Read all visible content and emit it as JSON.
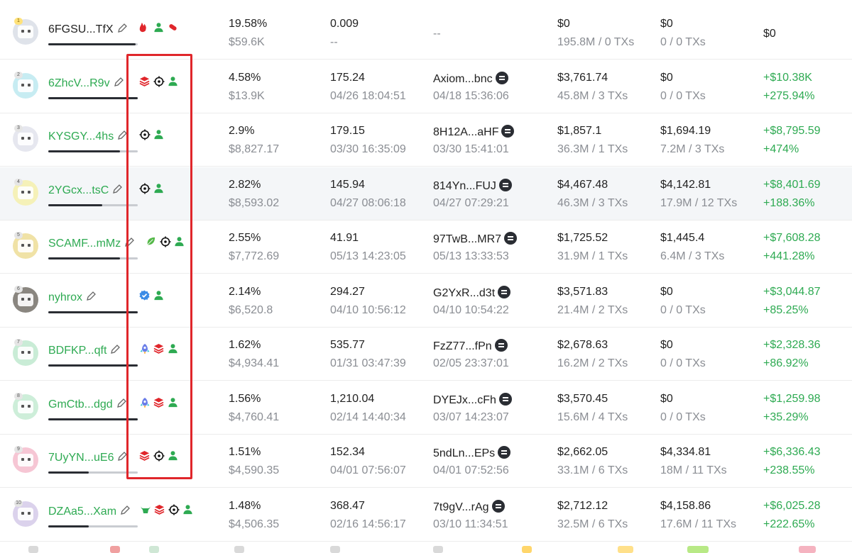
{
  "colors": {
    "accent_green": "#2eaa52",
    "highlight_box": "#e0262b"
  },
  "rows": [
    {
      "rank": "1",
      "name": "6FGSU...TfX",
      "name_style": "plain",
      "progress": 0.98,
      "badges": [
        "fire-user-icon",
        "user-icon",
        "pill-icon"
      ],
      "pct": "19.58%",
      "pct_val": "$59.6K",
      "bal": "0.009",
      "bal_time": "--",
      "source": "",
      "source_time": "--",
      "buy": "$0",
      "buy_sub": "195.8M / 0 TXs",
      "sell": "$0",
      "sell_sub": "0 / 0 TXs",
      "pnl": "$0",
      "pnl_pct": "",
      "pnl_style": "plain"
    },
    {
      "rank": "2",
      "name": "6ZhcV...R9v",
      "name_style": "green",
      "progress": 1.0,
      "badges": [
        "stack-icon",
        "target-icon",
        "user-icon"
      ],
      "pct": "4.58%",
      "pct_val": "$13.9K",
      "bal": "175.24",
      "bal_time": "04/26 18:04:51",
      "source": "Axiom...bnc",
      "source_time": "04/18 15:36:06",
      "buy": "$3,761.74",
      "buy_sub": "45.8M / 3 TXs",
      "sell": "$0",
      "sell_sub": "0 / 0 TXs",
      "pnl": "+$10.38K",
      "pnl_pct": "+275.94%",
      "pnl_style": "pos"
    },
    {
      "rank": "3",
      "name": "KYSGY...4hs",
      "name_style": "green",
      "progress": 0.8,
      "badges": [
        "target-icon",
        "user-icon"
      ],
      "pct": "2.9%",
      "pct_val": "$8,827.17",
      "bal": "179.15",
      "bal_time": "03/30 16:35:09",
      "source": "8H12A...aHF",
      "source_time": "03/30 15:41:01",
      "buy": "$1,857.1",
      "buy_sub": "36.3M / 1 TXs",
      "sell": "$1,694.19",
      "sell_sub": "7.2M / 3 TXs",
      "pnl": "+$8,795.59",
      "pnl_pct": "+474%",
      "pnl_style": "pos"
    },
    {
      "rank": "4",
      "name": "2YGcx...tsC",
      "name_style": "green",
      "progress": 0.6,
      "badges": [
        "target-icon",
        "user-icon"
      ],
      "pct": "2.82%",
      "pct_val": "$8,593.02",
      "bal": "145.94",
      "bal_time": "04/27 08:06:18",
      "source": "814Yn...FUJ",
      "source_time": "04/27 07:29:21",
      "buy": "$4,467.48",
      "buy_sub": "46.3M / 3 TXs",
      "sell": "$4,142.81",
      "sell_sub": "17.9M / 12 TXs",
      "pnl": "+$8,401.69",
      "pnl_pct": "+188.36%",
      "pnl_style": "pos"
    },
    {
      "rank": "5",
      "name": "SCAMF...mMz",
      "name_style": "green",
      "progress": 0.8,
      "badges": [
        "leaf-icon",
        "target-icon",
        "user-icon"
      ],
      "pct": "2.55%",
      "pct_val": "$7,772.69",
      "bal": "41.91",
      "bal_time": "05/13 14:23:05",
      "source": "97TwB...MR7",
      "source_time": "05/13 13:33:53",
      "buy": "$1,725.52",
      "buy_sub": "31.9M / 1 TXs",
      "sell": "$1,445.4",
      "sell_sub": "6.4M / 3 TXs",
      "pnl": "+$7,608.28",
      "pnl_pct": "+441.28%",
      "pnl_style": "pos"
    },
    {
      "rank": "6",
      "name": "nyhrox",
      "name_style": "green",
      "progress": 1.0,
      "badges": [
        "verified-icon",
        "user-icon"
      ],
      "pct": "2.14%",
      "pct_val": "$6,520.8",
      "bal": "294.27",
      "bal_time": "04/10 10:56:12",
      "source": "G2YxR...d3t",
      "source_time": "04/10 10:54:22",
      "buy": "$3,571.83",
      "buy_sub": "21.4M / 2 TXs",
      "sell": "$0",
      "sell_sub": "0 / 0 TXs",
      "pnl": "+$3,044.87",
      "pnl_pct": "+85.25%",
      "pnl_style": "pos"
    },
    {
      "rank": "7",
      "name": "BDFKP...qft",
      "name_style": "green",
      "progress": 1.0,
      "badges": [
        "rocket-icon",
        "stack-icon",
        "user-icon"
      ],
      "pct": "1.62%",
      "pct_val": "$4,934.41",
      "bal": "535.77",
      "bal_time": "01/31 03:47:39",
      "source": "FzZ77...fPn",
      "source_time": "02/05 23:37:01",
      "buy": "$2,678.63",
      "buy_sub": "16.2M / 2 TXs",
      "sell": "$0",
      "sell_sub": "0 / 0 TXs",
      "pnl": "+$2,328.36",
      "pnl_pct": "+86.92%",
      "pnl_style": "pos"
    },
    {
      "rank": "8",
      "name": "GmCtb...dgd",
      "name_style": "green",
      "progress": 1.0,
      "badges": [
        "rocket-icon",
        "stack-icon",
        "user-icon"
      ],
      "pct": "1.56%",
      "pct_val": "$4,760.41",
      "bal": "1,210.04",
      "bal_time": "02/14 14:40:34",
      "source": "DYEJx...cFh",
      "source_time": "03/07 14:23:07",
      "buy": "$3,570.45",
      "buy_sub": "15.6M / 4 TXs",
      "sell": "$0",
      "sell_sub": "0 / 0 TXs",
      "pnl": "+$1,259.98",
      "pnl_pct": "+35.29%",
      "pnl_style": "pos"
    },
    {
      "rank": "9",
      "name": "7UyYN...uE6",
      "name_style": "green",
      "progress": 0.45,
      "badges": [
        "stack-icon",
        "target-icon",
        "user-icon"
      ],
      "pct": "1.51%",
      "pct_val": "$4,590.35",
      "bal": "152.34",
      "bal_time": "04/01 07:56:07",
      "source": "5ndLn...EPs",
      "source_time": "04/01 07:52:56",
      "buy": "$2,662.05",
      "buy_sub": "33.1M / 6 TXs",
      "sell": "$4,334.81",
      "sell_sub": "18M / 11 TXs",
      "pnl": "+$6,336.43",
      "pnl_pct": "+238.55%",
      "pnl_style": "pos"
    },
    {
      "rank": "10",
      "name": "DZAa5...Xam",
      "name_style": "green",
      "progress": 0.45,
      "badges": [
        "bull-icon",
        "stack-icon",
        "target-icon",
        "user-icon"
      ],
      "pct": "1.48%",
      "pct_val": "$4,506.35",
      "bal": "368.47",
      "bal_time": "02/16 14:56:17",
      "source": "7t9gV...rAg",
      "source_time": "03/10 11:34:51",
      "buy": "$2,712.12",
      "buy_sub": "32.5M / 6 TXs",
      "sell": "$4,158.86",
      "sell_sub": "17.6M / 11 TXs",
      "pnl": "+$6,025.28",
      "pnl_pct": "+222.65%",
      "pnl_style": "pos"
    }
  ]
}
